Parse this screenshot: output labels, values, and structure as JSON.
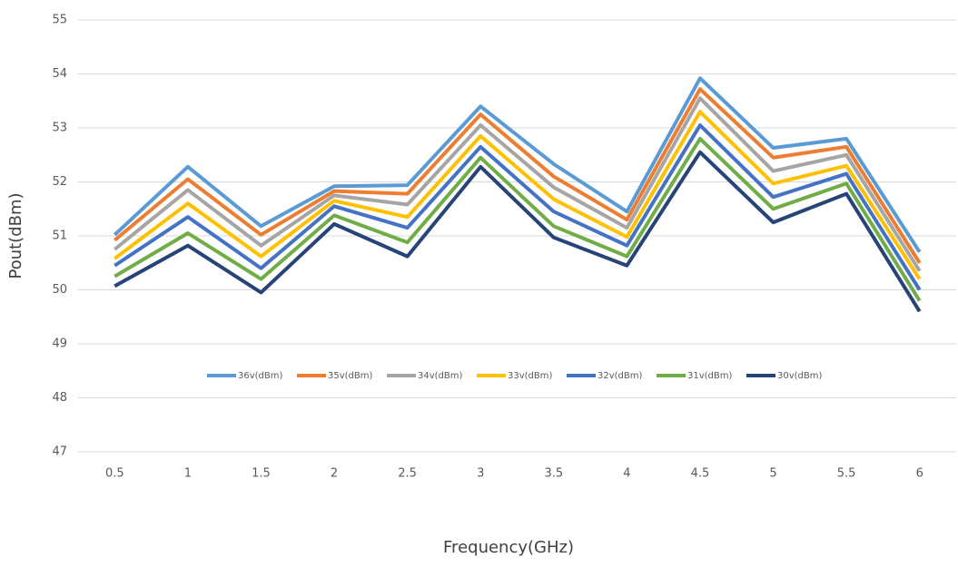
{
  "chart_data": {
    "type": "line",
    "x_label": "Frequency(GHz)",
    "y_label": "Pout(dBm)",
    "categories": [
      "0.5",
      "1",
      "1.5",
      "2",
      "2.5",
      "3",
      "3.5",
      "4",
      "4.5",
      "5",
      "5.5",
      "6"
    ],
    "series": [
      {
        "name": "36v(dBm)",
        "color": "#5b9bd5",
        "values": [
          51.02,
          52.28,
          51.18,
          51.92,
          51.94,
          53.4,
          52.33,
          51.45,
          53.92,
          52.63,
          52.8,
          50.7
        ]
      },
      {
        "name": "35v(dBm)",
        "color": "#ed7d31",
        "values": [
          50.92,
          52.05,
          51.02,
          51.83,
          51.78,
          53.25,
          52.1,
          51.3,
          53.72,
          52.45,
          52.65,
          50.5
        ]
      },
      {
        "name": "34v(dBm)",
        "color": "#a5a5a5",
        "values": [
          50.75,
          51.85,
          50.82,
          51.75,
          51.58,
          53.05,
          51.9,
          51.15,
          53.55,
          52.2,
          52.5,
          50.35
        ]
      },
      {
        "name": "33v(dBm)",
        "color": "#ffc000",
        "values": [
          50.58,
          51.6,
          50.62,
          51.65,
          51.35,
          52.85,
          51.68,
          50.98,
          53.3,
          51.97,
          52.3,
          50.2
        ]
      },
      {
        "name": "32v(dBm)",
        "color": "#4472c4",
        "values": [
          50.45,
          51.35,
          50.4,
          51.55,
          51.15,
          52.65,
          51.45,
          50.82,
          53.05,
          51.72,
          52.15,
          50.0
        ]
      },
      {
        "name": "31v(dBm)",
        "color": "#70ad47",
        "values": [
          50.25,
          51.05,
          50.2,
          51.38,
          50.88,
          52.45,
          51.18,
          50.62,
          52.8,
          51.5,
          51.97,
          49.8
        ]
      },
      {
        "name": "30v(dBm)",
        "color": "#264478",
        "values": [
          50.07,
          50.82,
          49.95,
          51.22,
          50.62,
          52.28,
          50.97,
          50.45,
          52.55,
          51.25,
          51.78,
          49.6
        ]
      }
    ],
    "ylim": [
      47,
      55
    ],
    "yticks": [
      47,
      48,
      49,
      50,
      51,
      52,
      53,
      54,
      55
    ],
    "grid": true
  }
}
